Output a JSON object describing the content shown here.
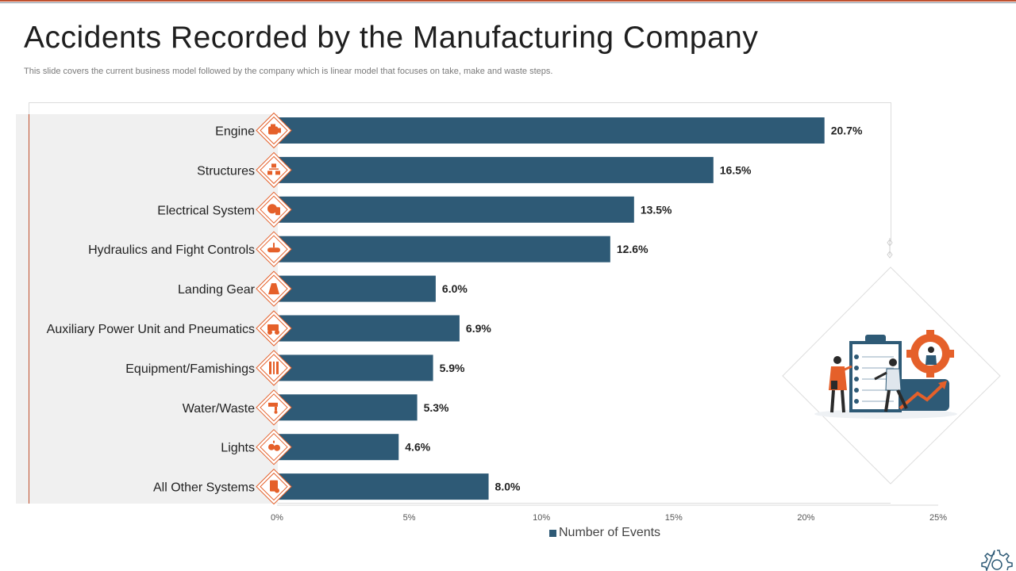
{
  "slide": {
    "title": "Accidents Recorded by the Manufacturing Company",
    "subtitle": "This slide covers the current business model followed by the company which is linear model that focuses on take, make and waste steps."
  },
  "colors": {
    "bar": "#2e5a76",
    "accent": "#e5602a",
    "panel": "#f0f0f0",
    "text": "#222222"
  },
  "icons": [
    "engine-icon",
    "structures-icon",
    "electrical-icon",
    "hydraulics-icon",
    "landing-gear-icon",
    "apu-icon",
    "equipment-icon",
    "water-waste-icon",
    "lights-icon",
    "other-systems-icon"
  ],
  "chart_data": {
    "type": "bar",
    "orientation": "horizontal",
    "categories": [
      "Engine",
      "Structures",
      "Electrical System",
      "Hydraulics and Fight Controls",
      "Landing Gear",
      "Auxiliary Power Unit and Pneumatics",
      "Equipment/Famishings",
      "Water/Waste",
      "Lights",
      "All Other Systems"
    ],
    "series": [
      {
        "name": "Number of Events",
        "values": [
          20.7,
          16.5,
          13.5,
          12.6,
          6.0,
          6.9,
          5.9,
          5.3,
          4.6,
          8.0
        ]
      }
    ],
    "data_labels": [
      "20.7%",
      "16.5%",
      "13.5%",
      "12.6%",
      "6.0%",
      "6.9%",
      "5.9%",
      "5.3%",
      "4.6%",
      "8.0%"
    ],
    "xlim": [
      0,
      25
    ],
    "x_ticks": [
      0,
      5,
      10,
      15,
      20,
      25
    ],
    "x_tick_labels": [
      "0%",
      "5%",
      "10%",
      "15%",
      "20%",
      "25%"
    ],
    "legend_position": "bottom",
    "grid": false
  }
}
